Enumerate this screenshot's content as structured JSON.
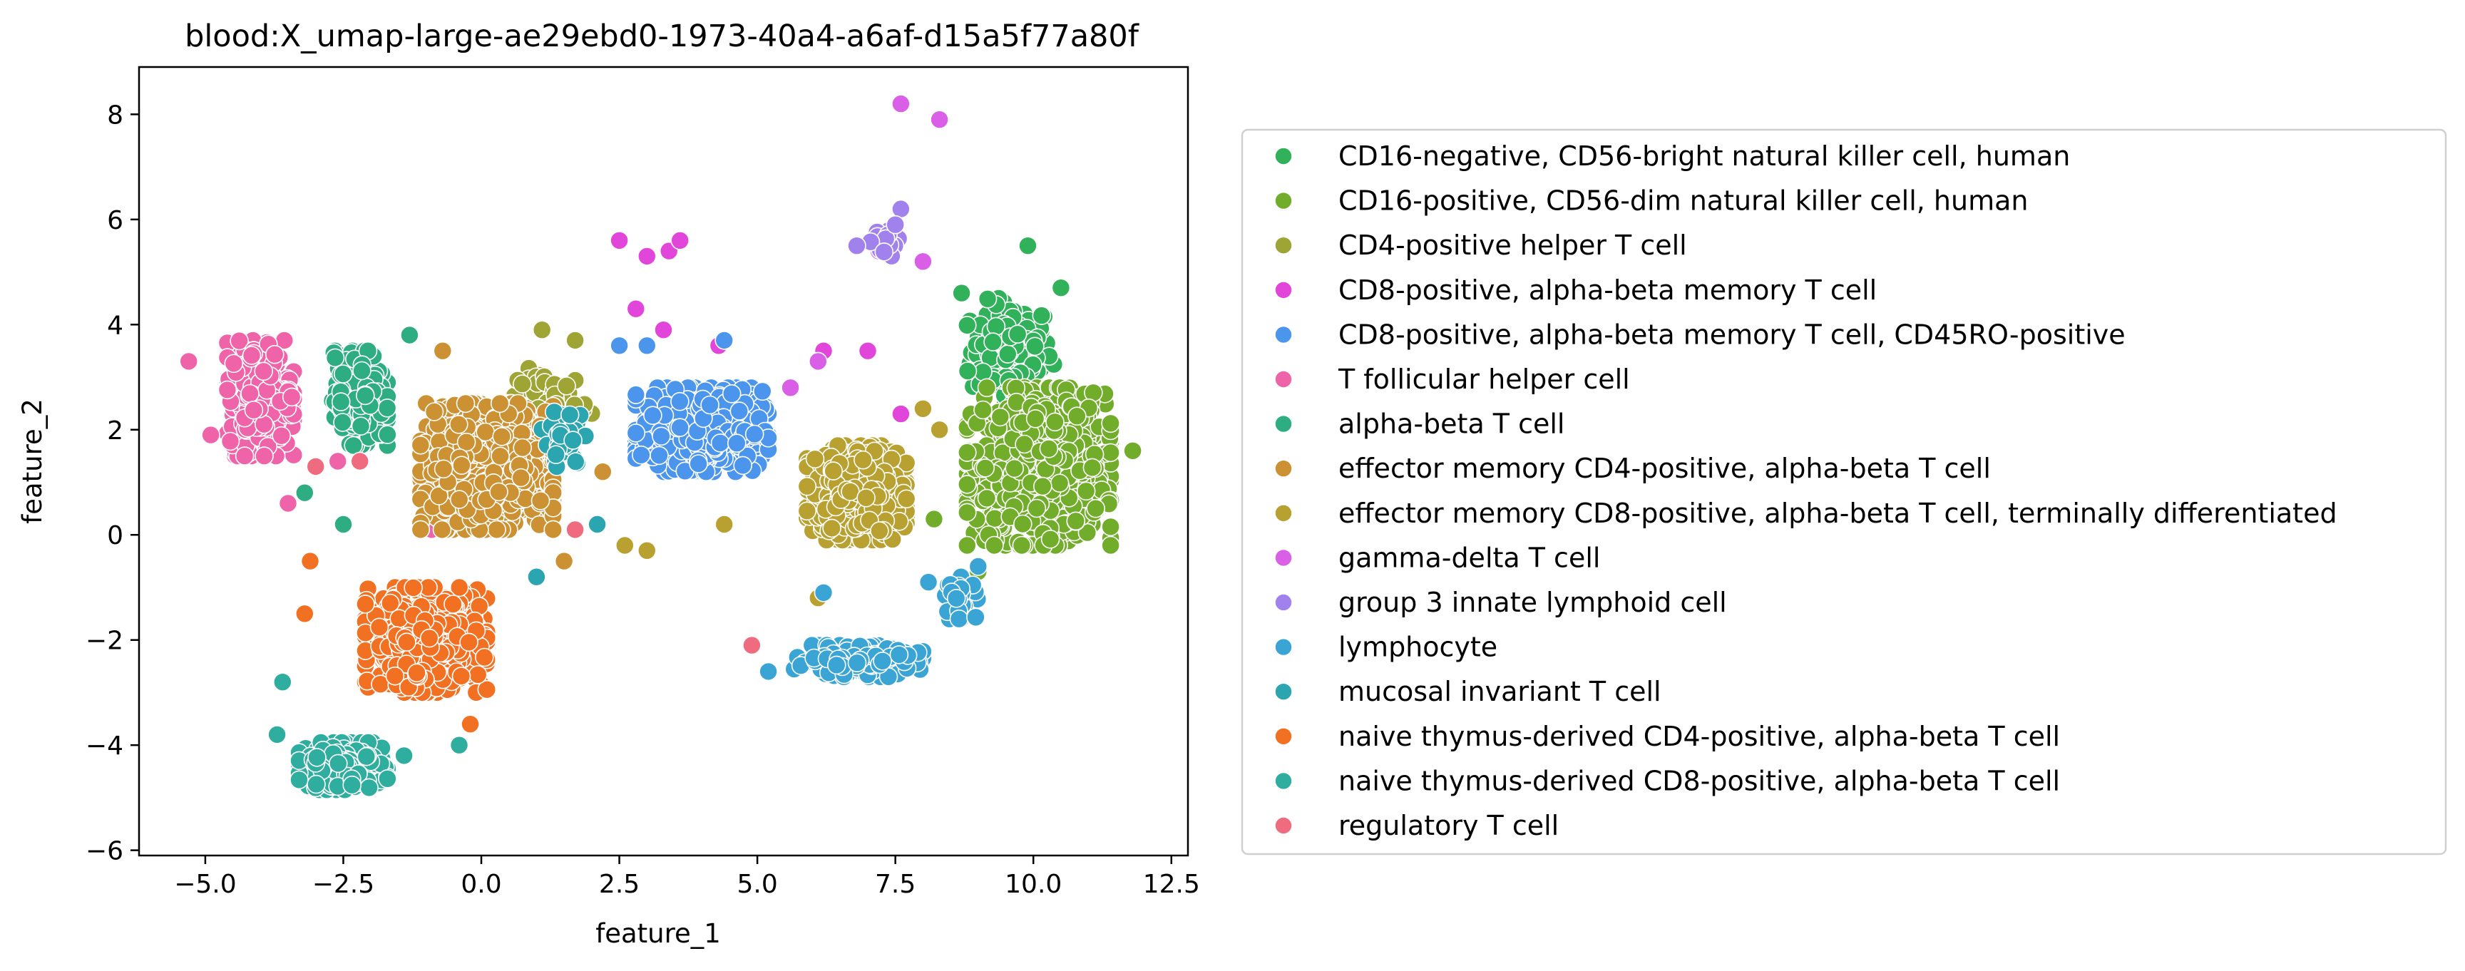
{
  "chart_data": {
    "type": "scatter",
    "title": "blood:X_umap-large-ae29ebd0-1973-40a4-a6af-d15a5f77a80f",
    "xlabel": "feature_1",
    "ylabel": "feature_2",
    "xlim": [
      -6.2,
      12.8
    ],
    "ylim": [
      -6.1,
      8.9
    ],
    "xticks": [
      -5.0,
      -2.5,
      0.0,
      2.5,
      5.0,
      7.5,
      10.0,
      12.5
    ],
    "xtick_labels": [
      "−5.0",
      "−2.5",
      "0.0",
      "2.5",
      "5.0",
      "7.5",
      "10.0",
      "12.5"
    ],
    "yticks": [
      -6,
      -4,
      -2,
      0,
      2,
      4,
      6,
      8
    ],
    "ytick_labels": [
      "−6",
      "−4",
      "−2",
      "0",
      "2",
      "4",
      "6",
      "8"
    ],
    "grid": false,
    "legend_position": "outside-right",
    "series": [
      {
        "name": "CD16-negative, CD56-bright natural killer cell, human",
        "color": "#31b15a",
        "clusters": [
          {
            "center": [
              9.6,
              3.5
            ],
            "spread": [
              0.8,
              1.0
            ],
            "n": 160
          }
        ],
        "points": [
          [
            9.9,
            5.5
          ],
          [
            8.7,
            4.6
          ],
          [
            10.5,
            4.7
          ]
        ]
      },
      {
        "name": "CD16-positive, CD56-dim natural killer cell, human",
        "color": "#71ad2b",
        "clusters": [
          {
            "center": [
              10.1,
              1.3
            ],
            "spread": [
              1.3,
              1.5
            ],
            "n": 900
          }
        ],
        "points": [
          [
            11.8,
            1.6
          ],
          [
            8.2,
            0.3
          ],
          [
            9.0,
            -0.7
          ]
        ]
      },
      {
        "name": "CD4-positive helper T cell",
        "color": "#9ea534",
        "clusters": [
          {
            "center": [
              1.3,
              2.6
            ],
            "spread": [
              0.7,
              0.6
            ],
            "n": 40
          }
        ],
        "points": [
          [
            1.1,
            3.9
          ],
          [
            1.7,
            3.7
          ]
        ]
      },
      {
        "name": "CD8-positive, alpha-beta memory T cell",
        "color": "#e245d9",
        "clusters": [],
        "points": [
          [
            2.5,
            5.6
          ],
          [
            3.0,
            5.3
          ],
          [
            3.4,
            5.4
          ],
          [
            3.6,
            5.6
          ],
          [
            2.8,
            4.3
          ],
          [
            3.3,
            3.9
          ],
          [
            4.3,
            3.6
          ],
          [
            6.2,
            3.5
          ],
          [
            7.0,
            3.5
          ],
          [
            7.6,
            2.3
          ]
        ]
      },
      {
        "name": "CD8-positive, alpha-beta memory T cell, CD45RO-positive",
        "color": "#4b96ec",
        "clusters": [
          {
            "center": [
              4.0,
              2.0
            ],
            "spread": [
              1.2,
              0.8
            ],
            "n": 550
          }
        ],
        "points": [
          [
            2.5,
            3.6
          ],
          [
            3.0,
            3.6
          ],
          [
            4.4,
            3.7
          ],
          [
            1.7,
            0.1
          ]
        ]
      },
      {
        "name": "T follicular helper cell",
        "color": "#ef63a8",
        "clusters": [
          {
            "center": [
              -4.0,
              2.6
            ],
            "spread": [
              0.6,
              1.1
            ],
            "n": 450
          }
        ],
        "points": [
          [
            -5.3,
            3.3
          ],
          [
            -4.9,
            1.9
          ],
          [
            -3.5,
            0.6
          ],
          [
            -2.6,
            1.4
          ],
          [
            -0.9,
            0.1
          ]
        ]
      },
      {
        "name": "alpha-beta T cell",
        "color": "#2fad82",
        "clusters": [
          {
            "center": [
              -2.2,
              2.6
            ],
            "spread": [
              0.5,
              0.9
            ],
            "n": 280
          }
        ],
        "points": [
          [
            -3.2,
            0.8
          ],
          [
            -1.3,
            3.8
          ],
          [
            -2.5,
            0.2
          ]
        ]
      },
      {
        "name": "effector memory CD4-positive, alpha-beta T cell",
        "color": "#cc9132",
        "clusters": [
          {
            "center": [
              0.1,
              1.3
            ],
            "spread": [
              1.2,
              1.2
            ],
            "n": 950
          }
        ],
        "points": [
          [
            1.5,
            -0.5
          ],
          [
            2.2,
            1.2
          ],
          [
            -0.7,
            3.5
          ]
        ]
      },
      {
        "name": "effector memory CD8-positive, alpha-beta T cell, terminally differentiated",
        "color": "#b9a131",
        "clusters": [
          {
            "center": [
              6.8,
              0.8
            ],
            "spread": [
              0.9,
              0.9
            ],
            "n": 650
          }
        ],
        "points": [
          [
            4.4,
            0.2
          ],
          [
            3.0,
            -0.3
          ],
          [
            2.6,
            -0.2
          ],
          [
            6.1,
            -1.2
          ],
          [
            8.0,
            2.4
          ],
          [
            8.3,
            2.0
          ]
        ]
      },
      {
        "name": "gamma-delta T cell",
        "color": "#d95fe7",
        "clusters": [],
        "points": [
          [
            7.6,
            8.2
          ],
          [
            8.3,
            7.9
          ],
          [
            8.0,
            5.2
          ],
          [
            7.2,
            5.4
          ],
          [
            6.1,
            3.3
          ],
          [
            5.6,
            2.8
          ]
        ]
      },
      {
        "name": "group 3 innate lymphoid cell",
        "color": "#a182ec",
        "clusters": [
          {
            "center": [
              7.3,
              5.6
            ],
            "spread": [
              0.3,
              0.3
            ],
            "n": 18
          }
        ],
        "points": [
          [
            7.6,
            6.2
          ],
          [
            6.8,
            5.5
          ],
          [
            7.5,
            5.9
          ]
        ]
      },
      {
        "name": "lymphocyte",
        "color": "#3aa5d5",
        "clusters": [
          {
            "center": [
              6.8,
              -2.4
            ],
            "spread": [
              1.2,
              0.3
            ],
            "n": 230
          },
          {
            "center": [
              8.7,
              -1.2
            ],
            "spread": [
              0.3,
              0.4
            ],
            "n": 30
          }
        ],
        "points": [
          [
            6.2,
            -1.1
          ],
          [
            5.2,
            -2.6
          ],
          [
            8.1,
            -0.9
          ],
          [
            9.0,
            -0.6
          ]
        ]
      },
      {
        "name": "mucosal invariant T cell",
        "color": "#2ba5b0",
        "clusters": [
          {
            "center": [
              1.5,
              1.8
            ],
            "spread": [
              0.4,
              0.6
            ],
            "n": 40
          }
        ],
        "points": [
          [
            1.0,
            -0.8
          ],
          [
            2.1,
            0.2
          ]
        ]
      },
      {
        "name": "naive thymus-derived CD4-positive, alpha-beta T cell",
        "color": "#f27022",
        "clusters": [
          {
            "center": [
              -1.0,
              -2.0
            ],
            "spread": [
              1.1,
              1.0
            ],
            "n": 700
          }
        ],
        "points": [
          [
            -3.1,
            -0.5
          ],
          [
            -3.2,
            -1.5
          ],
          [
            -0.2,
            -3.6
          ]
        ]
      },
      {
        "name": "naive thymus-derived CD8-positive, alpha-beta T cell",
        "color": "#2fad9e",
        "clusters": [
          {
            "center": [
              -2.5,
              -4.4
            ],
            "spread": [
              0.8,
              0.45
            ],
            "n": 420
          }
        ],
        "points": [
          [
            -3.6,
            -2.8
          ],
          [
            -3.7,
            -3.8
          ],
          [
            -1.4,
            -4.2
          ],
          [
            -0.4,
            -4.0
          ]
        ]
      },
      {
        "name": "regulatory T cell",
        "color": "#ef6b7f",
        "clusters": [],
        "points": [
          [
            4.9,
            -2.1
          ],
          [
            -3.0,
            1.3
          ],
          [
            -2.2,
            1.4
          ],
          [
            1.7,
            0.1
          ]
        ]
      }
    ]
  }
}
